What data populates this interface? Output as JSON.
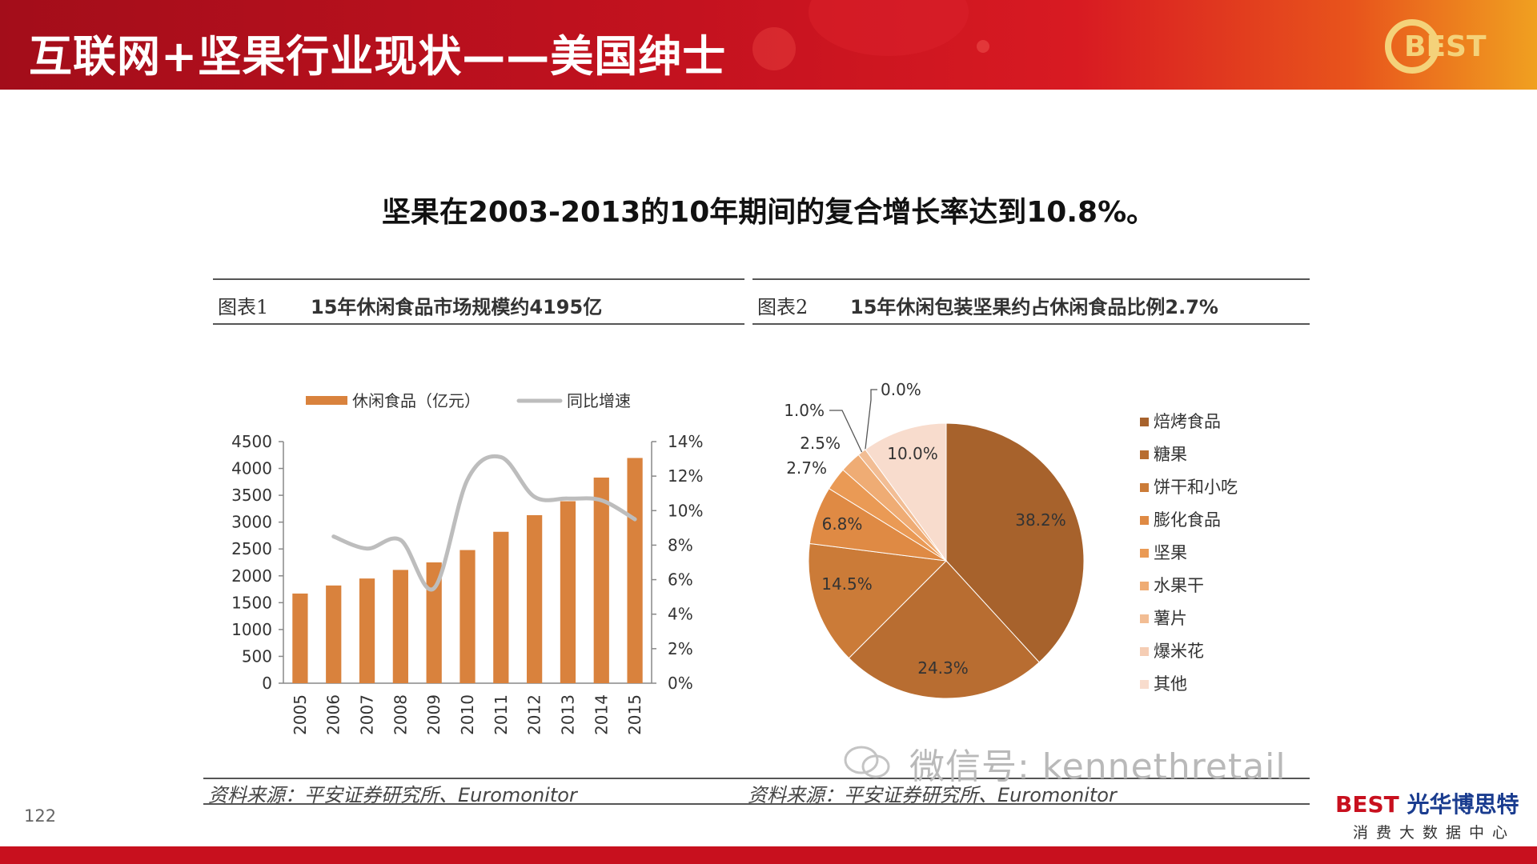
{
  "header": {
    "title": "互联网+坚果行业现状——美国绅士",
    "logo_text": "BEST"
  },
  "headline": "坚果在2003-2013的10年期间的复合增长率达到10.8%。",
  "panel1": {
    "label": "图表1",
    "title": "15年休闲食品市场规模约4195亿",
    "source": "资料来源：平安证券研究所、Euromonitor"
  },
  "panel2": {
    "label": "图表2",
    "title": "15年休闲包装坚果约占休闲食品比例2.7%",
    "source": "资料来源：平安证券研究所、Euromonitor"
  },
  "watermark": "微信号: kennethretail",
  "page_number": "122",
  "footer": {
    "brand_e": "BEST",
    "brand_name": "光华博思特",
    "brand_sub": "消费大数据中心"
  },
  "colors": {
    "bar": "#d9823d",
    "line": "#bdbdbd",
    "accent": "#c8101e"
  },
  "chart_data": [
    {
      "type": "bar",
      "categories": [
        "2005",
        "2006",
        "2007",
        "2008",
        "2009",
        "2010",
        "2011",
        "2012",
        "2013",
        "2014",
        "2015"
      ],
      "series": [
        {
          "name": "休闲食品（亿元）",
          "type": "bar",
          "axis": "left",
          "values": [
            1670,
            1820,
            1950,
            2110,
            2250,
            2480,
            2820,
            3130,
            3390,
            3830,
            4195
          ]
        },
        {
          "name": "同比增速",
          "type": "line",
          "axis": "right",
          "values": [
            null,
            8.5,
            7.8,
            8.3,
            5.5,
            11.8,
            13.1,
            10.8,
            10.7,
            10.6,
            9.5
          ]
        }
      ],
      "ylim_left": [
        0,
        4500
      ],
      "yticks_left": [
        "0",
        "500",
        "1000",
        "1500",
        "2000",
        "2500",
        "3000",
        "3500",
        "4000",
        "4500"
      ],
      "ylim_right": [
        0,
        14
      ],
      "yticks_right": [
        "0%",
        "2%",
        "4%",
        "6%",
        "8%",
        "10%",
        "12%",
        "14%"
      ],
      "legend": "top"
    },
    {
      "type": "pie",
      "slices": [
        {
          "label": "焙烤食品",
          "value": 38.2,
          "text": "38.2%",
          "color": "#a7622c"
        },
        {
          "label": "糖果",
          "value": 24.3,
          "text": "24.3%",
          "color": "#b86d31"
        },
        {
          "label": "饼干和小吃",
          "value": 14.5,
          "text": "14.5%",
          "color": "#cb7b38"
        },
        {
          "label": "膨化食品",
          "value": 6.8,
          "text": "6.8%",
          "color": "#df8a44"
        },
        {
          "label": "坚果",
          "value": 2.7,
          "text": "2.7%",
          "color": "#ea9a55"
        },
        {
          "label": "水果干",
          "value": 2.5,
          "text": "2.5%",
          "color": "#efac74"
        },
        {
          "label": "薯片",
          "value": 1.0,
          "text": "1.0%",
          "color": "#f2bd94"
        },
        {
          "label": "爆米花",
          "value": 0.0,
          "text": "0.0%",
          "color": "#f5cdb4"
        },
        {
          "label": "其他",
          "value": 10.0,
          "text": "10.0%",
          "color": "#f8dccd"
        }
      ],
      "legend": "right"
    }
  ]
}
